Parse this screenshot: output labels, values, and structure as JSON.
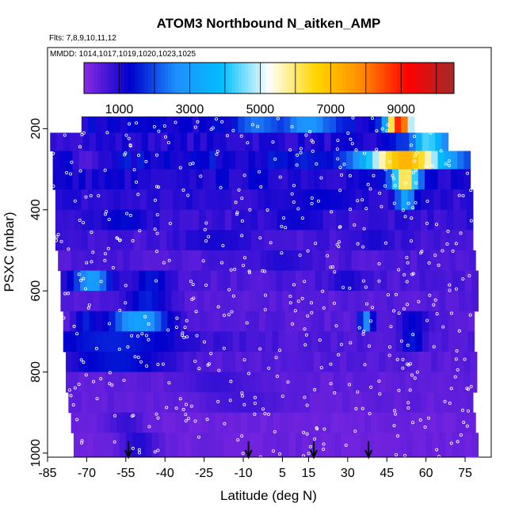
{
  "chart_data": {
    "type": "heatmap",
    "title": "ATOM3 Northbound N_aitken_AMP",
    "flights_label": "Flts: 7,8,9,10,11,12",
    "mmdd_label": "MMDD: 1014,1017,1019,1020,1023,1025",
    "xlabel": "Latitude (deg N)",
    "ylabel": "PSXC (mbar)",
    "xlim": [
      -85,
      85
    ],
    "ylim": [
      1010,
      0
    ],
    "x_ticks": [
      -85,
      -70,
      -55,
      -40,
      -25,
      -10,
      5,
      15,
      30,
      45,
      60,
      75
    ],
    "y_ticks": [
      200,
      400,
      600,
      800,
      1000
    ],
    "colorbar": {
      "min": 0,
      "max": 10500,
      "tick_values": [
        1000,
        3000,
        5000,
        7000,
        9000
      ],
      "tick_labels": [
        "1000",
        "3000",
        "5000",
        "7000",
        "9000"
      ],
      "bin_edges": [
        0,
        1000,
        2000,
        3000,
        4000,
        5000,
        6000,
        7000,
        8000,
        9000,
        10000
      ],
      "colors": [
        "#8a2be2",
        "#0000cd",
        "#1e90ff",
        "#00bfff",
        "#ffffff",
        "#ffd700",
        "#ff8c00",
        "#ff0000",
        "#a52a2a"
      ]
    },
    "layers": [
      {
        "p_top": 170,
        "p_bot": 210,
        "lat_min": -72,
        "lat_max": 55,
        "value": 1200,
        "features": [
          {
            "lat": -5,
            "w": 10,
            "value": 2400
          },
          {
            "lat": 15,
            "w": 15,
            "value": 2800
          },
          {
            "lat": 50,
            "w": 7,
            "value": 9000
          }
        ]
      },
      {
        "p_top": 210,
        "p_bot": 255,
        "lat_min": -84,
        "lat_max": 68,
        "value": 1000,
        "features": [
          {
            "lat": 60,
            "w": 12,
            "value": 4400
          },
          {
            "lat": 52,
            "w": 6,
            "value": 1800
          }
        ]
      },
      {
        "p_top": 255,
        "p_bot": 300,
        "lat_min": -83,
        "lat_max": 76,
        "value": 1300,
        "features": [
          {
            "lat": 52,
            "w": 22,
            "value": 7200
          },
          {
            "lat": -70,
            "w": 8,
            "value": 500
          }
        ]
      },
      {
        "p_top": 300,
        "p_bot": 350,
        "lat_min": -83,
        "lat_max": 77,
        "value": 1100,
        "features": [
          {
            "lat": 52,
            "w": 7,
            "value": 6400
          },
          {
            "lat": -40,
            "w": 15,
            "value": 900
          }
        ]
      },
      {
        "p_top": 350,
        "p_bot": 400,
        "lat_min": -82,
        "lat_max": 78,
        "value": 900,
        "features": [
          {
            "lat": 52,
            "w": 5,
            "value": 3200
          },
          {
            "lat": 20,
            "w": 20,
            "value": 1300
          }
        ]
      },
      {
        "p_top": 400,
        "p_bot": 450,
        "lat_min": -82,
        "lat_max": 78,
        "value": 800,
        "features": [
          {
            "lat": -55,
            "w": 12,
            "value": 1400
          },
          {
            "lat": 10,
            "w": 15,
            "value": 1200
          }
        ]
      },
      {
        "p_top": 450,
        "p_bot": 500,
        "lat_min": -82,
        "lat_max": 78,
        "value": 700,
        "features": [
          {
            "lat": -20,
            "w": 20,
            "value": 1100
          },
          {
            "lat": 40,
            "w": 10,
            "value": 1100
          }
        ]
      },
      {
        "p_top": 500,
        "p_bot": 550,
        "lat_min": -81,
        "lat_max": 78,
        "value": 600,
        "features": [
          {
            "lat": 5,
            "w": 15,
            "value": 1000
          }
        ]
      },
      {
        "p_top": 550,
        "p_bot": 600,
        "lat_min": -80,
        "lat_max": 78,
        "value": 600,
        "features": [
          {
            "lat": -68,
            "w": 10,
            "value": 3000
          },
          {
            "lat": -45,
            "w": 10,
            "value": 1500
          },
          {
            "lat": 30,
            "w": 10,
            "value": 1100
          }
        ]
      },
      {
        "p_top": 600,
        "p_bot": 650,
        "lat_min": -80,
        "lat_max": 78,
        "value": 500,
        "features": [
          {
            "lat": -47,
            "w": 12,
            "value": 1600
          }
        ]
      },
      {
        "p_top": 650,
        "p_bot": 700,
        "lat_min": -79,
        "lat_max": 78,
        "value": 500,
        "features": [
          {
            "lat": -50,
            "w": 16,
            "value": 3100
          },
          {
            "lat": -70,
            "w": 6,
            "value": 1600
          },
          {
            "lat": 37,
            "w": 4,
            "value": 2600
          },
          {
            "lat": 55,
            "w": 8,
            "value": 1300
          }
        ]
      },
      {
        "p_top": 700,
        "p_bot": 750,
        "lat_min": -79,
        "lat_max": 78,
        "value": 600,
        "features": [
          {
            "lat": -60,
            "w": 40,
            "value": 1600
          },
          {
            "lat": 55,
            "w": 6,
            "value": 1500
          }
        ]
      },
      {
        "p_top": 750,
        "p_bot": 800,
        "lat_min": -78,
        "lat_max": 78,
        "value": 500,
        "features": [
          {
            "lat": -58,
            "w": 30,
            "value": 1500
          }
        ]
      },
      {
        "p_top": 800,
        "p_bot": 850,
        "lat_min": -78,
        "lat_max": 78,
        "value": 400,
        "features": [
          {
            "lat": -20,
            "w": 20,
            "value": 800
          }
        ]
      },
      {
        "p_top": 850,
        "p_bot": 900,
        "lat_min": -77,
        "lat_max": 78,
        "value": 400,
        "features": [
          {
            "lat": -10,
            "w": 20,
            "value": 700
          }
        ]
      },
      {
        "p_top": 900,
        "p_bot": 950,
        "lat_min": -76,
        "lat_max": 78,
        "value": 300,
        "features": [
          {
            "lat": -55,
            "w": 10,
            "value": 800
          }
        ]
      },
      {
        "p_top": 950,
        "p_bot": 1010,
        "lat_min": -75,
        "lat_max": 78,
        "value": 300,
        "features": [
          {
            "lat": -50,
            "w": 10,
            "value": 1000
          }
        ]
      }
    ],
    "arrows_lat": [
      -54,
      -8,
      17,
      38
    ]
  }
}
